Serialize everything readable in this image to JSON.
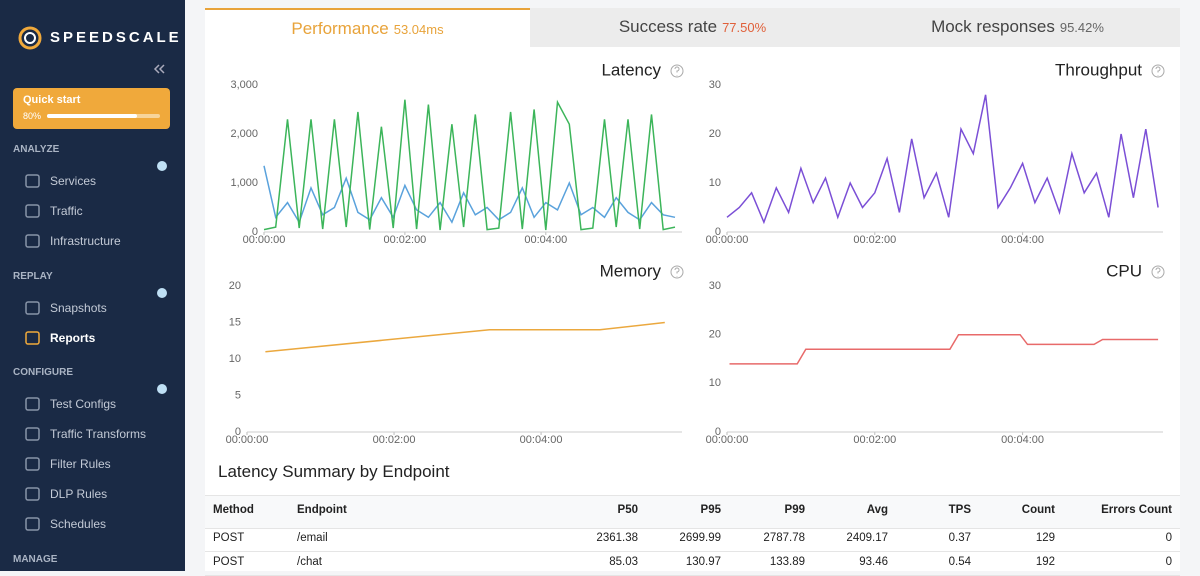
{
  "sidebar": {
    "logo": "SPEEDSCALE",
    "quick_start": {
      "label": "Quick start",
      "progress_label": "80%",
      "progress": 80
    },
    "sections": [
      {
        "title": "ANALYZE",
        "items": [
          "Services",
          "Traffic",
          "Infrastructure"
        ]
      },
      {
        "title": "REPLAY",
        "items": [
          "Snapshots",
          "Reports"
        ]
      },
      {
        "title": "CONFIGURE",
        "items": [
          "Test Configs",
          "Traffic Transforms",
          "Filter Rules",
          "DLP Rules",
          "Schedules"
        ]
      },
      {
        "title": "MANAGE",
        "items": []
      }
    ],
    "active_item": "Reports"
  },
  "tabs": [
    {
      "label": "Performance",
      "value": "53.04ms",
      "active": true,
      "color": "#e8a33a"
    },
    {
      "label": "Success rate",
      "value": "77.50%",
      "color": "#e0603a"
    },
    {
      "label": "Mock responses",
      "value": "95.42%",
      "color": "#666666"
    }
  ],
  "charts": [
    {
      "type": "line",
      "title": "Latency",
      "xlim": [
        0,
        356
      ],
      "xticks": [
        {
          "value": 0,
          "label": "00:00:00"
        },
        {
          "value": 120,
          "label": "00:02:00"
        },
        {
          "value": 240,
          "label": "00:04:00"
        }
      ],
      "ylim": [
        0,
        3000
      ],
      "yticks": [
        0,
        {
          "value": 1000,
          "label": "1,000"
        },
        {
          "value": 2000,
          "label": "2,000"
        },
        {
          "value": 3000,
          "label": "3,000"
        }
      ],
      "x": [
        0,
        10,
        20,
        30,
        40,
        50,
        60,
        70,
        80,
        90,
        100,
        110,
        120,
        130,
        140,
        150,
        160,
        170,
        180,
        190,
        200,
        210,
        220,
        230,
        240,
        250,
        260,
        270,
        280,
        290,
        300,
        310,
        320,
        330,
        340,
        350
      ],
      "series": [
        {
          "color": "#5aa2dc",
          "values": [
            1350,
            300,
            600,
            200,
            900,
            350,
            500,
            1100,
            400,
            250,
            700,
            300,
            950,
            450,
            300,
            600,
            200,
            800,
            350,
            500,
            250,
            400,
            900,
            300,
            600,
            450,
            1000,
            350,
            500,
            300,
            700,
            400,
            250,
            600,
            350,
            300
          ]
        },
        {
          "color": "#3cb55a",
          "values": [
            50,
            100,
            2300,
            80,
            2300,
            60,
            2300,
            100,
            2450,
            50,
            2150,
            80,
            2700,
            60,
            2600,
            40,
            2200,
            100,
            2400,
            50,
            80,
            2450,
            60,
            2500,
            40,
            2650,
            2200,
            50,
            80,
            2300,
            100,
            2300,
            60,
            2400,
            50,
            100
          ]
        }
      ]
    },
    {
      "type": "line",
      "title": "Throughput",
      "xlim": [
        0,
        354
      ],
      "xticks": [
        {
          "value": 0,
          "label": "00:00:00"
        },
        {
          "value": 120,
          "label": "00:02:00"
        },
        {
          "value": 240,
          "label": "00:04:00"
        }
      ],
      "ylim": [
        0,
        30
      ],
      "yticks": [
        0,
        10,
        20,
        30
      ],
      "x": [
        0,
        10,
        20,
        30,
        40,
        50,
        60,
        70,
        80,
        90,
        100,
        110,
        120,
        130,
        140,
        150,
        160,
        170,
        180,
        190,
        200,
        210,
        220,
        230,
        240,
        250,
        260,
        270,
        280,
        290,
        300,
        310,
        320,
        330,
        340,
        350
      ],
      "series": [
        {
          "color": "#7b4fd6",
          "values": [
            3,
            5,
            8,
            2,
            9,
            4,
            13,
            6,
            11,
            3,
            10,
            5,
            8,
            15,
            4,
            19,
            7,
            12,
            3,
            21,
            16,
            28,
            5,
            9,
            14,
            6,
            11,
            4,
            16,
            8,
            12,
            3,
            20,
            7,
            21,
            5
          ]
        }
      ]
    },
    {
      "type": "line",
      "title": "Memory",
      "xlim": [
        0,
        355
      ],
      "xticks": [
        {
          "value": 0,
          "label": "00:00:00"
        },
        {
          "value": 120,
          "label": "00:02:00"
        },
        {
          "value": 240,
          "label": "00:04:00"
        }
      ],
      "ylim": [
        0,
        20
      ],
      "yticks": [
        0,
        5,
        10,
        15,
        20
      ],
      "x": [
        15,
        198,
        288,
        341
      ],
      "series": [
        {
          "color": "#eba83e",
          "values": [
            11,
            14,
            14,
            15
          ]
        }
      ]
    },
    {
      "type": "line",
      "title": "CPU",
      "xlim": [
        0,
        354
      ],
      "xticks": [
        {
          "value": 0,
          "label": "00:00:00"
        },
        {
          "value": 120,
          "label": "00:02:00"
        },
        {
          "value": 240,
          "label": "00:04:00"
        }
      ],
      "ylim": [
        0,
        30
      ],
      "yticks": [
        0,
        10,
        20,
        30
      ],
      "x": [
        2,
        57,
        64,
        181,
        188,
        238,
        244,
        298,
        305,
        350
      ],
      "series": [
        {
          "color": "#e86a6a",
          "values": [
            14,
            14,
            17,
            17,
            20,
            20,
            18,
            18,
            19,
            19
          ]
        }
      ]
    }
  ],
  "table": {
    "title": "Latency Summary by Endpoint",
    "columns": [
      "Method",
      "Endpoint",
      "P50",
      "P95",
      "P99",
      "Avg",
      "TPS",
      "Count",
      "Errors Count"
    ],
    "rows": [
      [
        "POST",
        "/email",
        2361.38,
        2699.99,
        2787.78,
        2409.17,
        0.37,
        129,
        0
      ],
      [
        "POST",
        "/chat",
        85.03,
        130.97,
        133.89,
        93.46,
        0.54,
        192,
        0
      ]
    ]
  }
}
